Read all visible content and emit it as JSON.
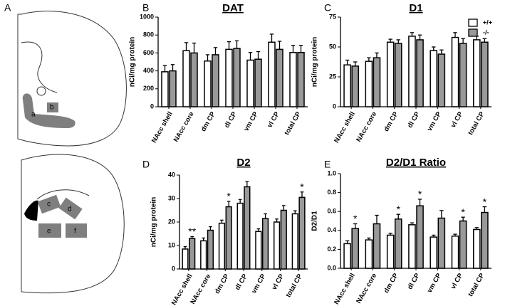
{
  "diagram": {
    "panel": "A",
    "labels": [
      "a",
      "b",
      "c",
      "d",
      "e",
      "f"
    ]
  },
  "chart_data": [
    {
      "type": "bar",
      "panel": "B",
      "title": "DAT",
      "ylabel": "nCi/mg protein",
      "categories": [
        "NAcc shell",
        "NAcc core",
        "dm CP",
        "dl CP",
        "vm CP",
        "vl CP",
        "total CP"
      ],
      "series": [
        {
          "color": "#ffffff",
          "values": [
            390,
            625,
            510,
            640,
            520,
            720,
            605
          ],
          "errors": [
            70,
            90,
            70,
            85,
            85,
            90,
            80
          ]
        },
        {
          "color": "#999999",
          "values": [
            400,
            600,
            580,
            650,
            530,
            640,
            605
          ],
          "errors": [
            70,
            110,
            80,
            85,
            85,
            90,
            80
          ]
        }
      ],
      "ylim": [
        0,
        1000
      ],
      "yticks": [
        0,
        200,
        400,
        600,
        800,
        1000
      ]
    },
    {
      "type": "bar",
      "panel": "C",
      "title": "D1",
      "ylabel": "nCi/mg protein",
      "categories": [
        "NAcc shell",
        "NAcc core",
        "dm CP",
        "dl CP",
        "vm CP",
        "vl CP",
        "total CP"
      ],
      "series": [
        {
          "name": "+/+",
          "color": "#ffffff",
          "values": [
            35,
            38,
            54,
            59,
            47,
            58,
            56
          ],
          "errors": [
            4,
            3,
            2.5,
            3,
            3,
            4,
            3
          ]
        },
        {
          "name": "-/-",
          "color": "#999999",
          "values": [
            34,
            41,
            53,
            56,
            44,
            53,
            54
          ],
          "errors": [
            3.5,
            4,
            3,
            4,
            3.5,
            4,
            3
          ]
        }
      ],
      "ylim": [
        0,
        75
      ],
      "yticks": [
        0,
        25,
        50,
        75
      ],
      "legend": "top-right"
    },
    {
      "type": "bar",
      "panel": "D",
      "title": "D2",
      "ylabel": "nCi/mg protein",
      "categories": [
        "NAcc shell",
        "NAcc core",
        "dm CP",
        "dl CP",
        "vm CP",
        "vl CP",
        "total CP"
      ],
      "series": [
        {
          "color": "#ffffff",
          "values": [
            8.5,
            12,
            19.5,
            28,
            16,
            20,
            23.5
          ],
          "errors": [
            1,
            1.2,
            1.3,
            1.6,
            1.1,
            1.3,
            1.3
          ]
        },
        {
          "color": "#999999",
          "values": [
            13,
            16.5,
            26.5,
            35,
            21.5,
            25,
            30.5
          ],
          "errors": [
            0.8,
            1.5,
            2.3,
            2.2,
            2,
            2,
            2.3
          ]
        }
      ],
      "significance": [
        "**",
        null,
        "*",
        null,
        null,
        null,
        "*"
      ],
      "ylim": [
        0,
        40
      ],
      "yticks": [
        0,
        10,
        20,
        30,
        40
      ]
    },
    {
      "type": "bar",
      "panel": "E",
      "title": "D2/D1 Ratio",
      "ylabel": "D2/D1",
      "categories": [
        "NAcc shell",
        "NAcc core",
        "dm CP",
        "dl CP",
        "vm CP",
        "vl CP",
        "total CP"
      ],
      "series": [
        {
          "color": "#ffffff",
          "values": [
            0.26,
            0.3,
            0.35,
            0.46,
            0.33,
            0.34,
            0.41
          ],
          "errors": [
            0.03,
            0.02,
            0.02,
            0.02,
            0.02,
            0.02,
            0.02
          ]
        },
        {
          "color": "#999999",
          "values": [
            0.42,
            0.47,
            0.52,
            0.66,
            0.53,
            0.5,
            0.59
          ],
          "errors": [
            0.05,
            0.09,
            0.05,
            0.07,
            0.08,
            0.04,
            0.06
          ]
        }
      ],
      "significance": [
        "*",
        null,
        "*",
        "*",
        null,
        "*",
        "*"
      ],
      "ylim": [
        0,
        1.0
      ],
      "yticks": [
        {
          "value": 0,
          "label": "0.0"
        },
        {
          "value": 0.2,
          "label": "0.2"
        },
        {
          "value": 0.4,
          "label": "0.4"
        },
        {
          "value": 0.6,
          "label": "0.6"
        },
        {
          "value": 0.8,
          "label": "0.8"
        },
        {
          "value": 1.0,
          "label": "1.0"
        }
      ]
    }
  ]
}
